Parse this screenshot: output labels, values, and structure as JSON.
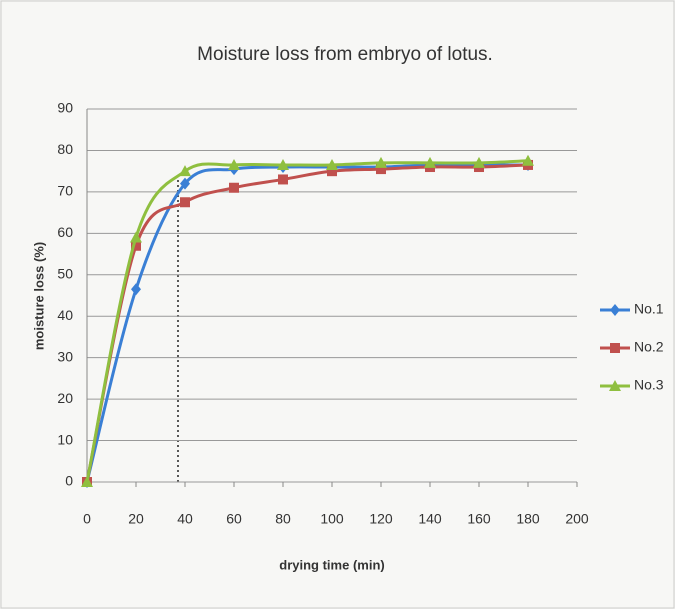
{
  "chart_data": {
    "type": "line",
    "title": "Moisture loss from embryo of lotus.",
    "x_label": "drying time (min)",
    "y_label": "moisture loss (%)",
    "x": [
      0,
      20,
      40,
      60,
      80,
      100,
      120,
      140,
      160,
      180
    ],
    "series": [
      {
        "name": "No.1",
        "color": "#3a7fd5",
        "marker": "diamond",
        "values": [
          0,
          46.5,
          72,
          75.5,
          76,
          76,
          76,
          76.5,
          76.5,
          76.5
        ]
      },
      {
        "name": "No.2",
        "color": "#c0504d",
        "marker": "square",
        "values": [
          0,
          57,
          67.5,
          71,
          73,
          75,
          75.5,
          76,
          76,
          76.5
        ]
      },
      {
        "name": "No.3",
        "color": "#8fbf3f",
        "marker": "triangle",
        "values": [
          0,
          59,
          75,
          76.5,
          76.5,
          76.5,
          77,
          77,
          77,
          77.5
        ]
      }
    ],
    "xlim": [
      0,
      200
    ],
    "xticks": [
      0,
      20,
      40,
      60,
      80,
      100,
      120,
      140,
      160,
      180,
      200
    ],
    "ylim": [
      0,
      90
    ],
    "yticks": [
      0,
      10,
      20,
      30,
      40,
      50,
      60,
      70,
      80,
      90
    ],
    "grid": true,
    "legend": "right"
  }
}
